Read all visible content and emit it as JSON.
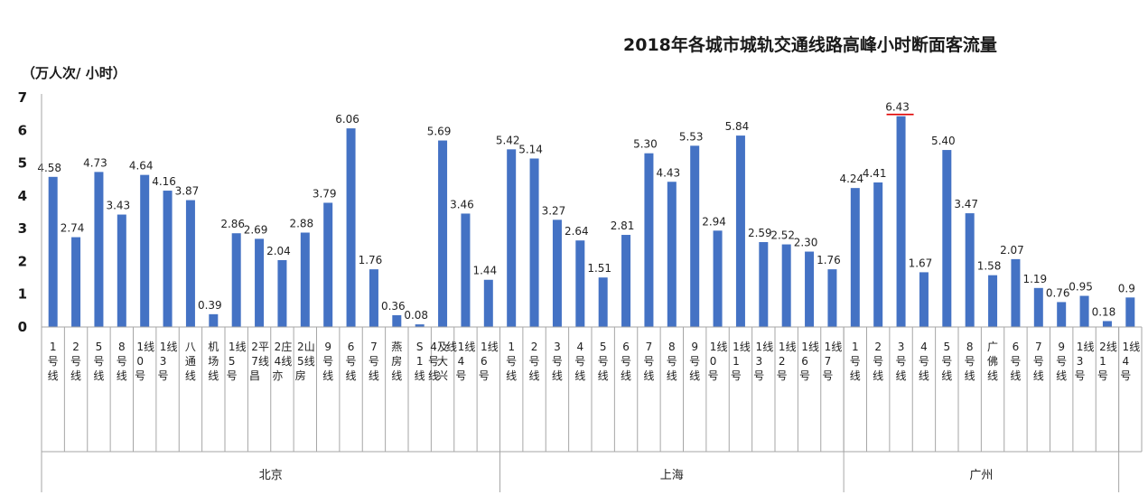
{
  "chart_data": {
    "type": "bar",
    "title": "2018年各城市城轨交通线路高峰小时断面客流量",
    "ylabel": "（万人次/ 小时）",
    "ylim": [
      0,
      7
    ],
    "yticks": [
      "0",
      "1",
      "2",
      "3",
      "4",
      "5",
      "6",
      "7"
    ],
    "groups": [
      {
        "name": "北京",
        "count": 20
      },
      {
        "name": "上海",
        "count": 15
      },
      {
        "name": "广州",
        "count": 12
      }
    ],
    "categories": [
      "1号线",
      "2号线",
      "5号线",
      "8号线",
      "10号线",
      "13号线",
      "八通线",
      "机场线",
      "15号线",
      "27昌平线",
      "24亦庄线",
      "25房山线",
      "9号线",
      "6号线",
      "7号线",
      "燕房线",
      "S1线",
      "4号线及大兴线",
      "14号线",
      "16号线",
      "1号线",
      "2号线",
      "3号线",
      "4号线",
      "5号线",
      "6号线",
      "7号线",
      "8号线",
      "9号线",
      "10号线",
      "11号线",
      "13号线",
      "12号线",
      "16号线",
      "17号线",
      "1号线",
      "2号线",
      "3号线",
      "4号线",
      "5号线",
      "8号线",
      "广佛线",
      "6号线",
      "7号线",
      "9号线",
      "13号线",
      "21号线",
      "14号线"
    ],
    "values": [
      4.58,
      2.74,
      4.73,
      3.43,
      4.64,
      4.16,
      3.87,
      0.39,
      2.86,
      2.69,
      2.04,
      2.88,
      3.79,
      6.06,
      1.76,
      0.36,
      0.08,
      5.69,
      3.46,
      1.44,
      5.42,
      5.14,
      3.27,
      2.64,
      1.51,
      2.81,
      5.3,
      4.43,
      5.53,
      2.94,
      5.84,
      2.59,
      2.52,
      2.3,
      1.76,
      4.24,
      4.41,
      6.43,
      1.67,
      5.4,
      3.47,
      1.58,
      2.07,
      1.19,
      0.76,
      0.95,
      0.18,
      0.9
    ],
    "value_labels": [
      "4.58",
      "2.74",
      "4.73",
      "3.43",
      "4.64",
      "4.16",
      "3.87",
      "0.39",
      "2.86",
      "2.69",
      "2.04",
      "2.88",
      "3.79",
      "6.06",
      "1.76",
      "0.36",
      "0.08",
      "5.69",
      "3.46",
      "1.44",
      "5.42",
      "5.14",
      "3.27",
      "2.64",
      "1.51",
      "2.81",
      "5.30",
      "4.43",
      "5.53",
      "2.94",
      "5.84",
      "2.59",
      "2.52",
      "2.30",
      "1.76",
      "4.24",
      "4.41",
      "6.43",
      "1.67",
      "5.40",
      "3.47",
      "1.58",
      "2.07",
      "1.19",
      "0.76",
      "0.95",
      "0.18",
      "0.9"
    ],
    "highlight_index": 37,
    "colors": {
      "bar": "#4472c4",
      "highlight": "#e00000",
      "axis": "#a6a6a6"
    },
    "grid": false,
    "legend": "none"
  }
}
